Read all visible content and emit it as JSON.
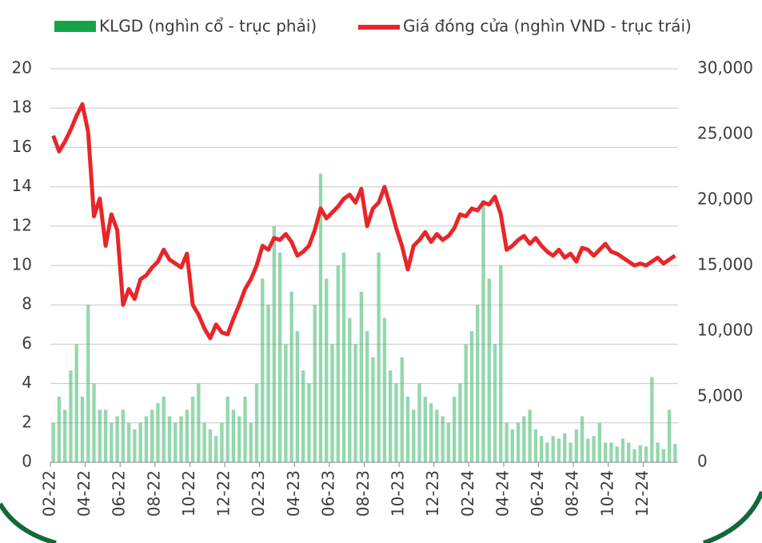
{
  "chart_data": {
    "type": "bar-line",
    "categories": [
      "02-22",
      null,
      null,
      null,
      null,
      null,
      "04-22",
      null,
      null,
      null,
      null,
      null,
      "06-22",
      null,
      null,
      null,
      null,
      null,
      "08-22",
      null,
      null,
      null,
      null,
      null,
      "10-22",
      null,
      null,
      null,
      null,
      null,
      "12-22",
      null,
      null,
      null,
      null,
      null,
      "02-23",
      null,
      null,
      null,
      null,
      null,
      "04-23",
      null,
      null,
      null,
      null,
      null,
      "06-23",
      null,
      null,
      null,
      null,
      null,
      "08-23",
      null,
      null,
      null,
      null,
      null,
      "10-23",
      null,
      null,
      null,
      null,
      null,
      "12-23",
      null,
      null,
      null,
      null,
      null,
      "02-24",
      null,
      null,
      null,
      null,
      null,
      "04-24",
      null,
      null,
      null,
      null,
      null,
      "06-24",
      null,
      null,
      null,
      null,
      null,
      "08-24",
      null,
      null,
      null,
      null,
      null,
      "10-24",
      null,
      null,
      null,
      null,
      null,
      "12-24",
      null,
      null,
      null,
      null,
      null
    ],
    "series": [
      {
        "name": "KLGD (nghìn cổ - trục phải)",
        "type": "bar",
        "axis": "y2",
        "color": "#3cb86a",
        "legend_color": "#17a34a",
        "values": [
          3000,
          5000,
          4000,
          7000,
          9000,
          5000,
          12000,
          6000,
          4000,
          4000,
          3000,
          3500,
          4000,
          3000,
          2500,
          3000,
          3500,
          4000,
          4500,
          5000,
          3500,
          3000,
          3500,
          4000,
          5000,
          6000,
          3000,
          2500,
          2000,
          3000,
          5000,
          4000,
          3500,
          5000,
          3000,
          6000,
          14000,
          12000,
          18000,
          16000,
          9000,
          13000,
          10000,
          7000,
          6000,
          12000,
          22000,
          14000,
          9000,
          15000,
          16000,
          11000,
          9000,
          13000,
          10000,
          8000,
          16000,
          11000,
          7000,
          6000,
          8000,
          5000,
          4000,
          6000,
          5000,
          4500,
          4000,
          3500,
          3000,
          5000,
          6000,
          9000,
          10000,
          12000,
          20000,
          14000,
          9000,
          15000,
          3000,
          2500,
          3000,
          3500,
          4000,
          2500,
          2000,
          1500,
          2000,
          1800,
          2200,
          1500,
          2500,
          3500,
          1800,
          2000,
          3000,
          1500,
          1500,
          1200,
          1800,
          1500,
          1000,
          1300,
          1200,
          6500,
          1500,
          1000,
          4000,
          1400
        ]
      },
      {
        "name": "Giá đóng cửa (nghìn VND - trục trái)",
        "type": "line",
        "color": "#e8262a",
        "values": [
          16.6,
          15.8,
          16.3,
          16.9,
          17.6,
          18.2,
          16.8,
          12.5,
          13.4,
          11.0,
          12.6,
          11.8,
          8.0,
          8.8,
          8.3,
          9.3,
          9.5,
          9.9,
          10.2,
          10.8,
          10.3,
          10.1,
          9.9,
          10.6,
          8.0,
          7.5,
          6.8,
          6.3,
          7.0,
          6.6,
          6.5,
          7.3,
          8.0,
          8.8,
          9.3,
          10.0,
          11.0,
          10.8,
          11.4,
          11.3,
          11.6,
          11.2,
          10.5,
          10.7,
          11.0,
          11.8,
          12.9,
          12.4,
          12.7,
          13.0,
          13.4,
          13.6,
          13.2,
          13.9,
          12.0,
          12.9,
          13.2,
          14.0,
          13.0,
          11.9,
          11.0,
          9.8,
          11.0,
          11.3,
          11.7,
          11.2,
          11.6,
          11.3,
          11.5,
          11.9,
          12.6,
          12.5,
          12.9,
          12.8,
          13.2,
          13.1,
          13.5,
          12.6,
          10.8,
          11.0,
          11.3,
          11.5,
          11.1,
          11.4,
          11.0,
          10.7,
          10.5,
          10.8,
          10.4,
          10.6,
          10.2,
          10.9,
          10.8,
          10.5,
          10.8,
          11.1,
          10.7,
          10.6,
          10.4,
          10.2,
          10.0,
          10.1,
          10.0,
          10.2,
          10.4,
          10.1,
          10.3,
          10.5
        ]
      }
    ],
    "ylim": [
      0,
      20
    ],
    "yticks": [
      0,
      2,
      4,
      6,
      8,
      10,
      12,
      14,
      16,
      18,
      20
    ],
    "y2lim": [
      0,
      30000
    ],
    "y2ticks": [
      0,
      {
        "value": 5000,
        "label": "5,000"
      },
      {
        "value": 10000,
        "label": "10,000"
      },
      {
        "value": 15000,
        "label": "15,000"
      },
      {
        "value": 20000,
        "label": "20,000"
      },
      {
        "value": 25000,
        "label": "25,000"
      },
      {
        "value": 30000,
        "label": "30,000"
      }
    ],
    "grid": true,
    "legend": "top"
  }
}
